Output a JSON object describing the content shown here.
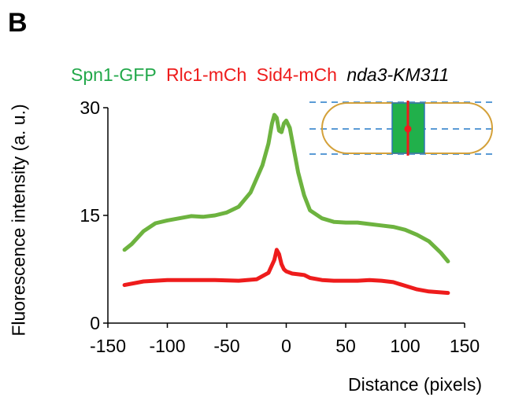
{
  "panel_label": "B",
  "title_parts": [
    {
      "text": "Spn1-GFP",
      "color": "#22a84a"
    },
    {
      "text": "Rlc1-mCh",
      "color": "#ee1c1c"
    },
    {
      "text": "Sid4-mCh",
      "color": "#ee1c1c"
    },
    {
      "text": "nda3-KM311",
      "color": "#000000"
    }
  ],
  "chart_data": {
    "type": "line",
    "title": "Spn1-GFP Rlc1-mCh Sid4-mCh nda3-KM311",
    "xlabel": "Distance (pixels)",
    "ylabel": "Fluorescence intensity (a. u.)",
    "xlim": [
      -150,
      150
    ],
    "ylim": [
      0,
      30
    ],
    "xticks": [
      -150,
      -100,
      -50,
      0,
      50,
      100,
      150
    ],
    "yticks": [
      0,
      15,
      30
    ],
    "grid": false,
    "series": [
      {
        "color": "#6db33f",
        "x": [
          -136,
          -130,
          -120,
          -110,
          -100,
          -90,
          -80,
          -70,
          -60,
          -50,
          -40,
          -30,
          -20,
          -15,
          -12,
          -10,
          -8,
          -6,
          -4,
          -2,
          0,
          3,
          6,
          10,
          15,
          20,
          30,
          40,
          50,
          60,
          70,
          80,
          90,
          100,
          110,
          120,
          130,
          136
        ],
        "y": [
          10.2,
          11.0,
          12.8,
          13.9,
          14.3,
          14.6,
          14.9,
          14.8,
          15.0,
          15.4,
          16.2,
          18.2,
          22.0,
          25.0,
          27.8,
          29.0,
          28.6,
          26.8,
          26.6,
          27.8,
          28.2,
          27.2,
          24.5,
          21.0,
          17.8,
          15.7,
          14.6,
          14.1,
          14.0,
          14.0,
          13.8,
          13.6,
          13.4,
          13.0,
          12.3,
          11.4,
          9.8,
          8.6
        ]
      },
      {
        "color": "#ee1c1c",
        "x": [
          -136,
          -120,
          -100,
          -80,
          -60,
          -40,
          -25,
          -15,
          -10,
          -8,
          -6,
          -4,
          -2,
          0,
          5,
          10,
          15,
          20,
          30,
          40,
          50,
          60,
          70,
          80,
          90,
          100,
          110,
          120,
          136
        ],
        "y": [
          5.3,
          5.8,
          6.0,
          6.0,
          6.0,
          5.9,
          6.1,
          7.0,
          8.8,
          10.2,
          9.6,
          8.2,
          7.5,
          7.2,
          6.9,
          6.8,
          6.7,
          6.3,
          6.0,
          5.9,
          5.9,
          5.9,
          6.0,
          5.9,
          5.7,
          5.2,
          4.7,
          4.4,
          4.2
        ]
      }
    ]
  }
}
